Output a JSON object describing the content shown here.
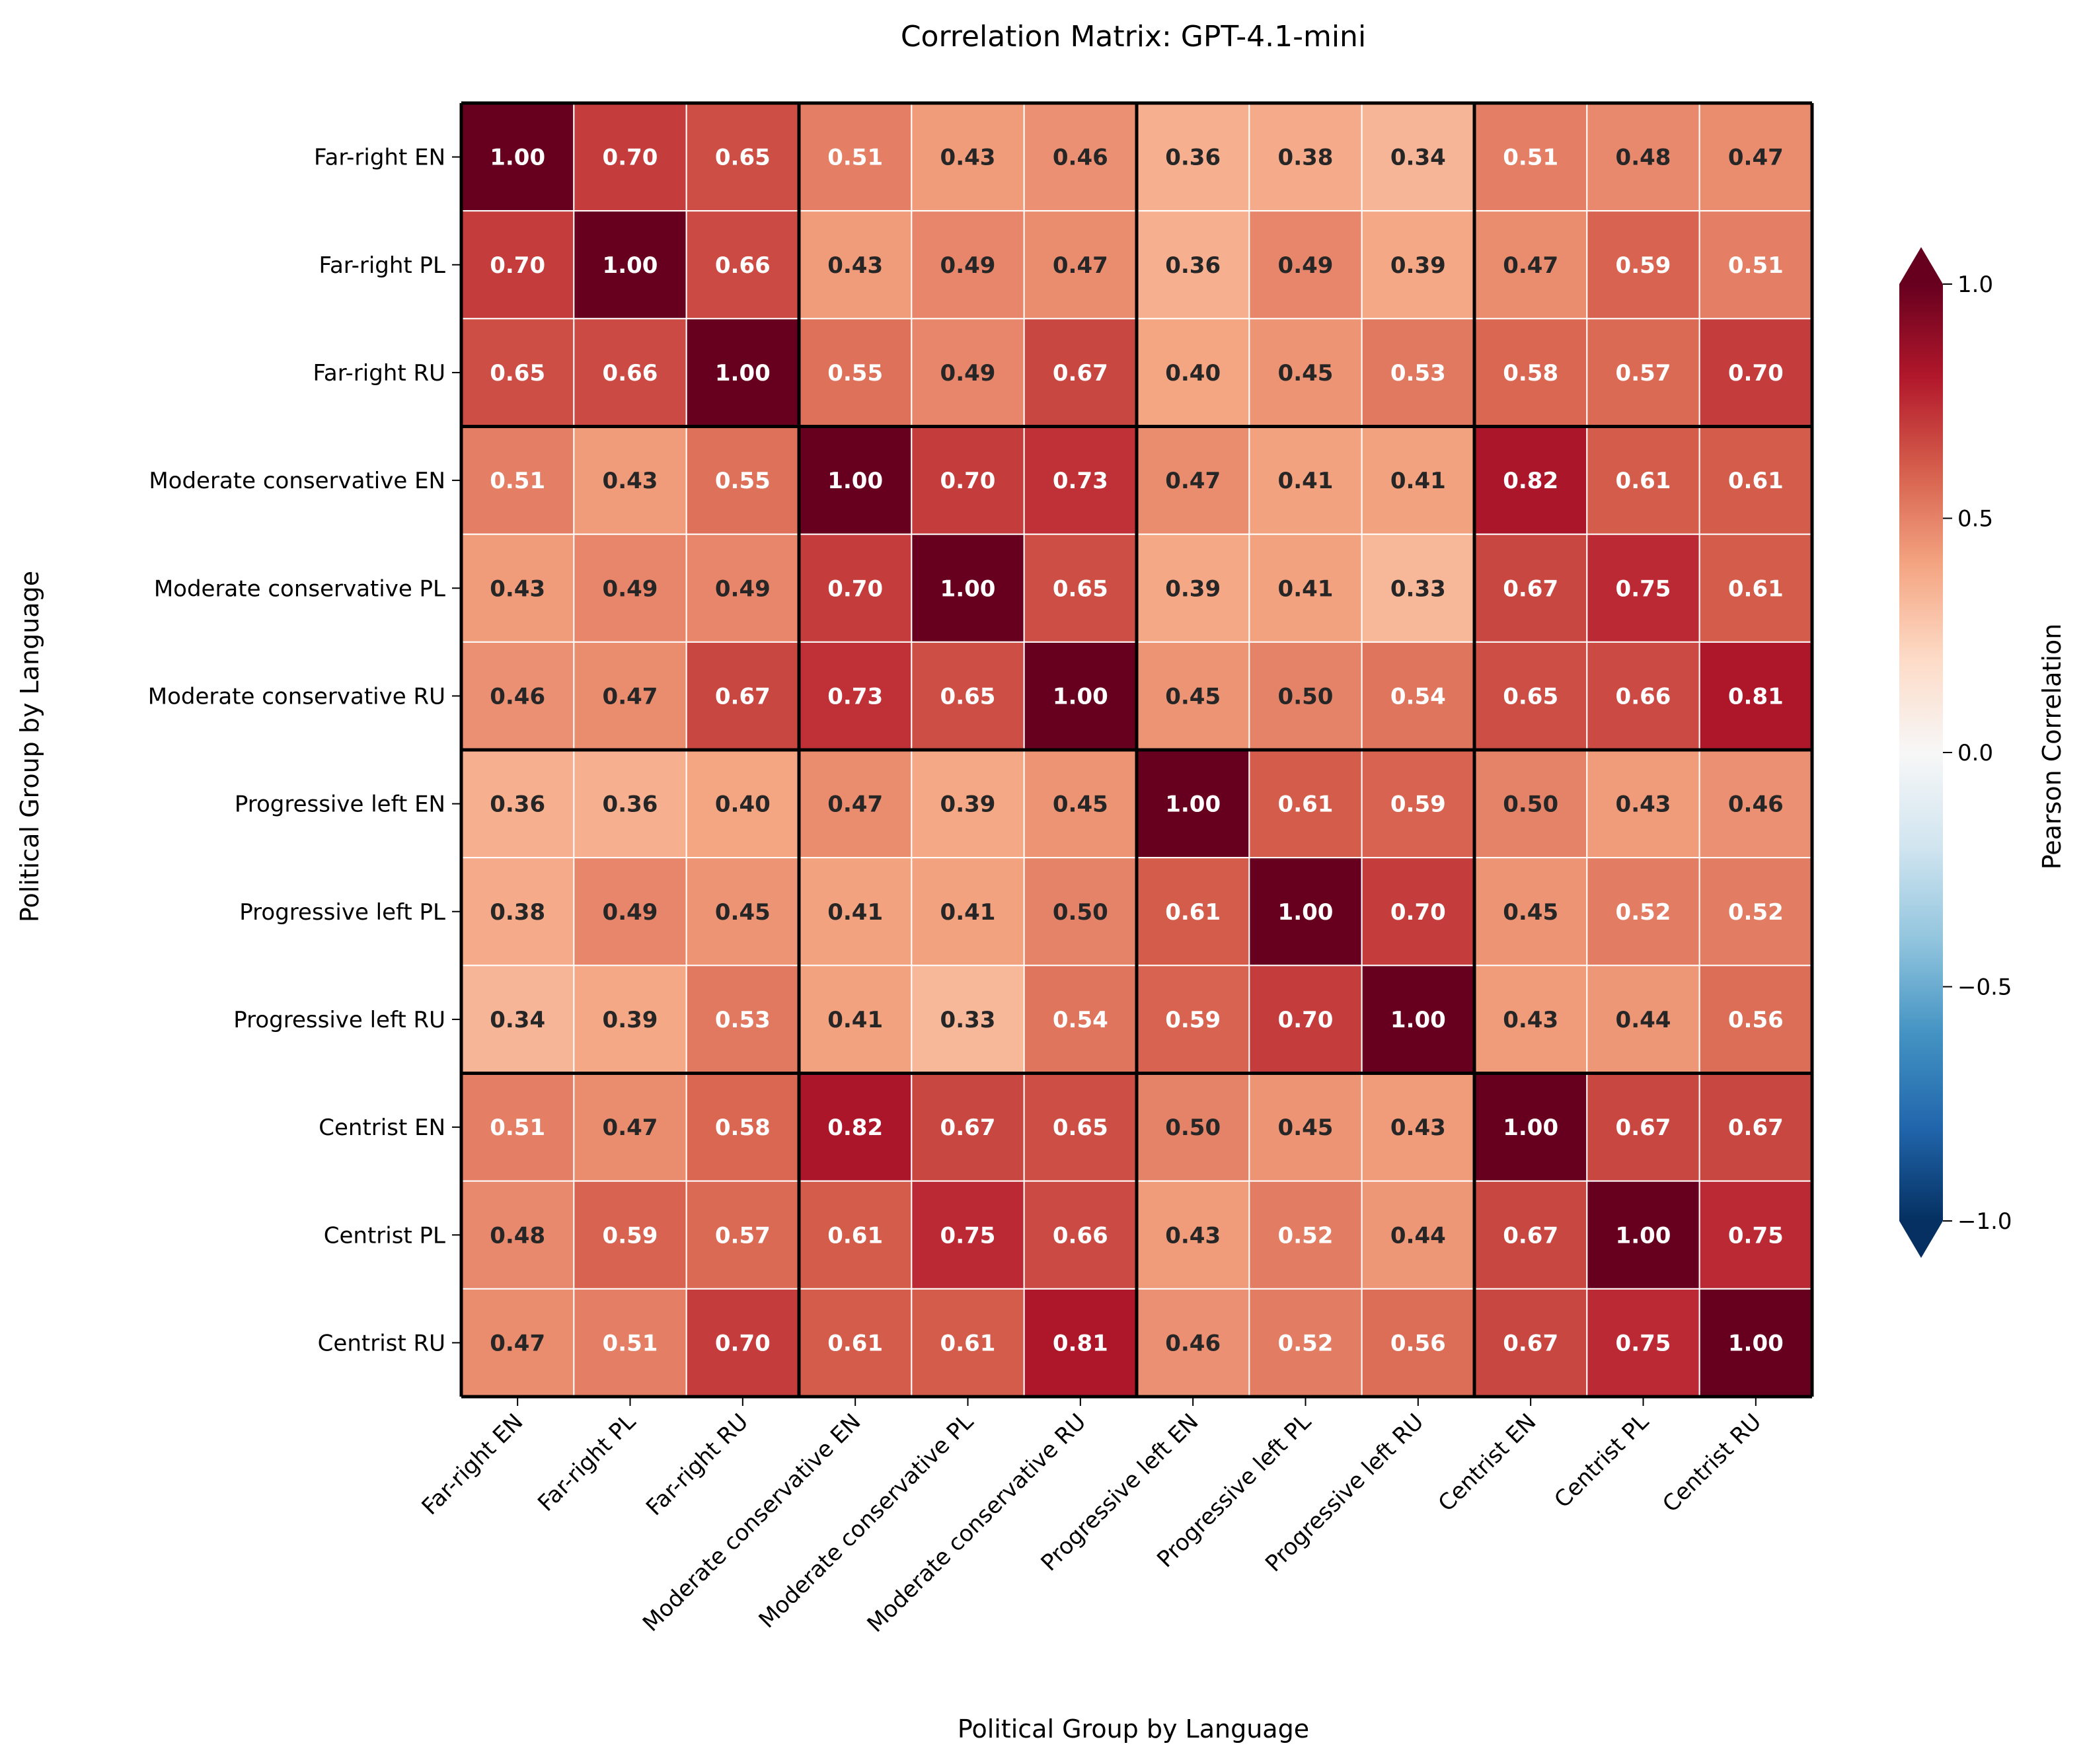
{
  "chart_data": {
    "type": "heatmap",
    "title": "Correlation Matrix: GPT-4.1-mini",
    "xlabel": "Political Group by Language",
    "ylabel": "Political Group by Language",
    "categories": [
      "Far-right EN",
      "Far-right PL",
      "Far-right RU",
      "Moderate conservative EN",
      "Moderate conservative PL",
      "Moderate conservative RU",
      "Progressive left EN",
      "Progressive left PL",
      "Progressive left RU",
      "Centrist EN",
      "Centrist PL",
      "Centrist RU"
    ],
    "values": [
      [
        1.0,
        0.7,
        0.65,
        0.51,
        0.43,
        0.46,
        0.36,
        0.38,
        0.34,
        0.51,
        0.48,
        0.47
      ],
      [
        0.7,
        1.0,
        0.66,
        0.43,
        0.49,
        0.47,
        0.36,
        0.49,
        0.39,
        0.47,
        0.59,
        0.51
      ],
      [
        0.65,
        0.66,
        1.0,
        0.55,
        0.49,
        0.67,
        0.4,
        0.45,
        0.53,
        0.58,
        0.57,
        0.7
      ],
      [
        0.51,
        0.43,
        0.55,
        1.0,
        0.7,
        0.73,
        0.47,
        0.41,
        0.41,
        0.82,
        0.61,
        0.61
      ],
      [
        0.43,
        0.49,
        0.49,
        0.7,
        1.0,
        0.65,
        0.39,
        0.41,
        0.33,
        0.67,
        0.75,
        0.61
      ],
      [
        0.46,
        0.47,
        0.67,
        0.73,
        0.65,
        1.0,
        0.45,
        0.5,
        0.54,
        0.65,
        0.66,
        0.81
      ],
      [
        0.36,
        0.36,
        0.4,
        0.47,
        0.39,
        0.45,
        1.0,
        0.61,
        0.59,
        0.5,
        0.43,
        0.46
      ],
      [
        0.38,
        0.49,
        0.45,
        0.41,
        0.41,
        0.5,
        0.61,
        1.0,
        0.7,
        0.45,
        0.52,
        0.52
      ],
      [
        0.34,
        0.39,
        0.53,
        0.41,
        0.33,
        0.54,
        0.59,
        0.7,
        1.0,
        0.43,
        0.44,
        0.56
      ],
      [
        0.51,
        0.47,
        0.58,
        0.82,
        0.67,
        0.65,
        0.5,
        0.45,
        0.43,
        1.0,
        0.67,
        0.67
      ],
      [
        0.48,
        0.59,
        0.57,
        0.61,
        0.75,
        0.66,
        0.43,
        0.52,
        0.44,
        0.67,
        1.0,
        0.75
      ],
      [
        0.47,
        0.51,
        0.7,
        0.61,
        0.61,
        0.81,
        0.46,
        0.52,
        0.56,
        0.67,
        0.75,
        1.0
      ]
    ],
    "value_format": "0.00",
    "group_size": 3,
    "colormap": "RdBu_r",
    "vmin": -1.0,
    "vmax": 1.0,
    "colorbar": {
      "label": "Pearson Correlation",
      "ticks": [
        "1.0",
        "0.5",
        "0.0",
        "−0.5",
        "−1.0"
      ],
      "tick_values": [
        1.0,
        0.5,
        0.0,
        -0.5,
        -1.0
      ],
      "extend": "both",
      "placement": "right"
    },
    "colors": {
      "group_border": "#000000",
      "cell_separator": "#ffffff",
      "text_dark": "#262626",
      "text_light": "#ffffff"
    }
  }
}
